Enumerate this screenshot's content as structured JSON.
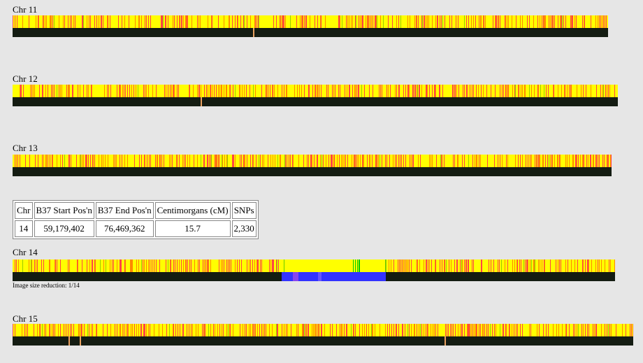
{
  "chromosomes": [
    {
      "label": "Chr 11"
    },
    {
      "label": "Chr 12"
    },
    {
      "label": "Chr 13"
    },
    {
      "label": "Chr 14"
    },
    {
      "label": "Chr 15"
    }
  ],
  "table": {
    "header": [
      "Chr",
      "B37 Start Pos'n",
      "B37 End Pos'n",
      "Centimorgans (cM)",
      "SNPs"
    ],
    "rows": [
      [
        "14",
        "59,179,402",
        "76,469,362",
        "15.7",
        "2,330"
      ]
    ]
  },
  "note": "Image size reduction: 1/14"
}
